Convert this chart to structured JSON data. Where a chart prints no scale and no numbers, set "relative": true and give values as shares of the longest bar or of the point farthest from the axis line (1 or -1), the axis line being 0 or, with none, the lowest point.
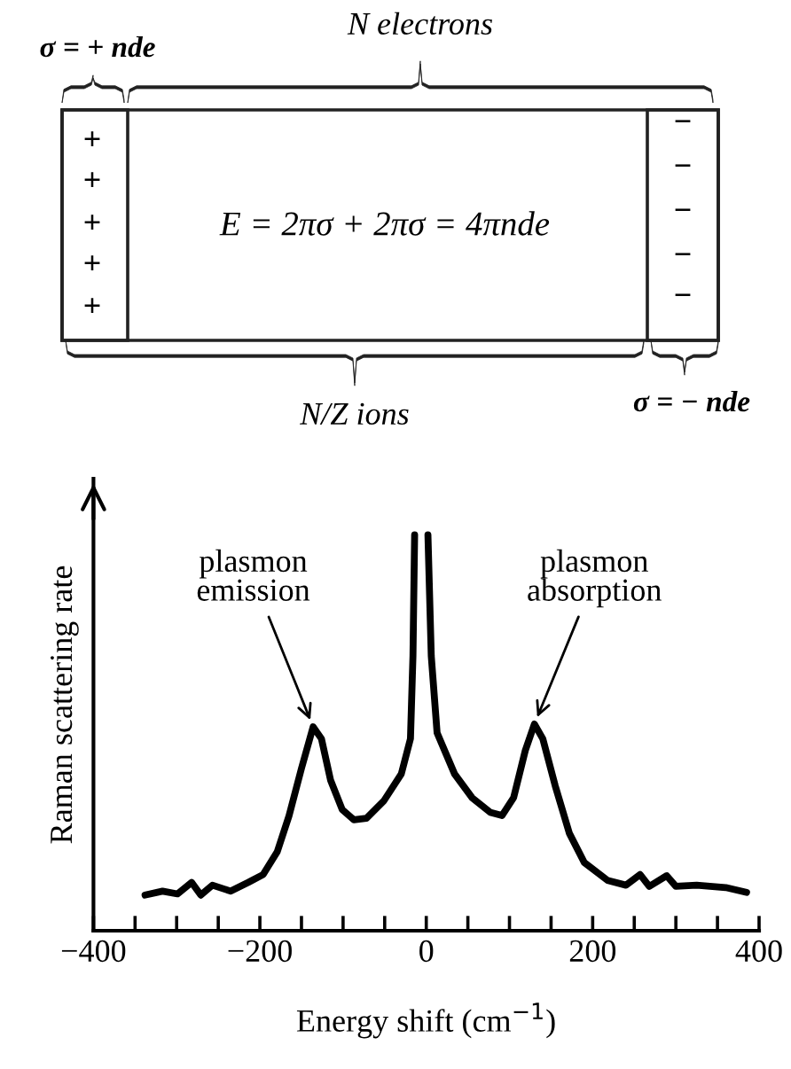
{
  "chart_data": [
    {
      "type": "other",
      "annotations": [
        "σ = + nde",
        "N electrons",
        "E = 2πσ + 2πσ = 4πnde",
        "N/Z ions",
        "σ = − nde",
        "+",
        "+",
        "+",
        "+",
        "+",
        "−",
        "−",
        "−",
        "−",
        "−"
      ]
    },
    {
      "type": "line",
      "relative": true,
      "xlabel": "Energy shift (cm$^{−1}$)",
      "ylabel": "Raman scattering rate",
      "xlim": [
        -400,
        400
      ],
      "xticks": [
        -400,
        {
          "value": -350,
          "label": null
        },
        {
          "value": -300,
          "label": null
        },
        {
          "value": -250,
          "label": null
        },
        -200,
        {
          "value": -150,
          "label": null
        },
        {
          "value": -100,
          "label": null
        },
        {
          "value": -50,
          "label": null
        },
        0,
        {
          "value": 50,
          "label": null
        },
        {
          "value": 100,
          "label": null
        },
        {
          "value": 150,
          "label": null
        },
        200,
        {
          "value": 250,
          "label": null
        },
        {
          "value": 300,
          "label": null
        },
        {
          "value": 350,
          "label": null
        },
        400
      ],
      "tick_labels": "x",
      "grid": false,
      "legend": false,
      "x": [
        -338,
        -317,
        -299,
        -282,
        -271,
        -257,
        -235,
        -214,
        -196,
        -179,
        -165,
        -150,
        -136,
        -126,
        -115,
        -101,
        -87,
        -72,
        -51,
        -30,
        -19,
        -16,
        -14,
        -6,
        2,
        6,
        13,
        34,
        55,
        77,
        91,
        105,
        119,
        130,
        140,
        155,
        172,
        190,
        218,
        240,
        257,
        268,
        289,
        300,
        325,
        360,
        385
      ],
      "series": [
        {
          "color": "#000000",
          "values": [
            0.09,
            0.1,
            0.093,
            0.122,
            0.09,
            0.115,
            0.1,
            0.122,
            0.142,
            0.2,
            0.29,
            0.41,
            0.515,
            0.485,
            0.38,
            0.306,
            0.28,
            0.284,
            0.328,
            0.396,
            0.485,
            0.694,
            1.0,
            null,
            1.0,
            0.694,
            0.5,
            0.396,
            0.336,
            0.299,
            0.291,
            0.336,
            0.455,
            0.522,
            0.485,
            0.366,
            0.246,
            0.172,
            0.127,
            0.115,
            0.142,
            0.112,
            0.139,
            0.112,
            0.115,
            0.109,
            0.097
          ]
        }
      ],
      "annotations": [
        {
          "text": "plasmon\nemission",
          "x": -136,
          "y": 0.515
        },
        {
          "text": "plasmon\nabsorption",
          "x": 130,
          "y": 0.522
        }
      ]
    }
  ]
}
